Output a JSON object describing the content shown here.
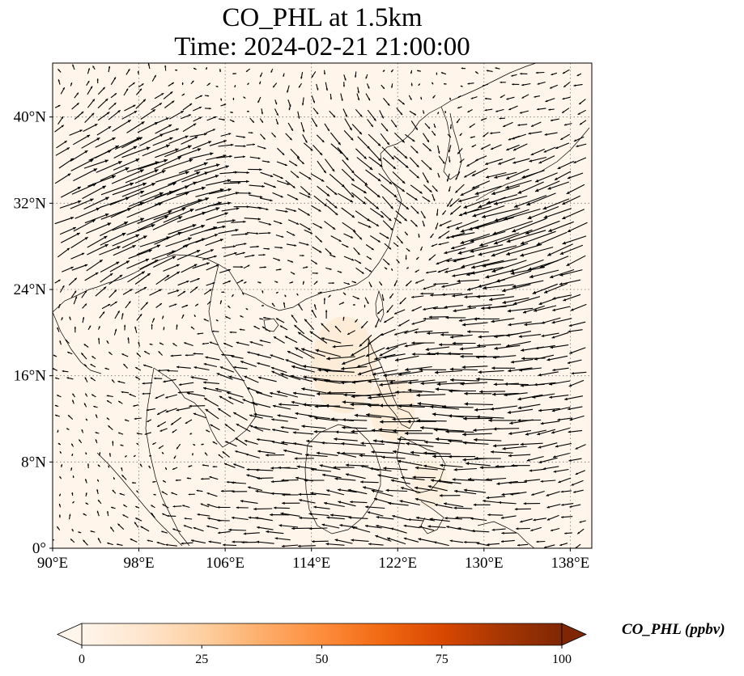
{
  "title": {
    "line1": "CO_PHL at 1.5km",
    "line2": "Time: 2024-02-21 21:00:00"
  },
  "map": {
    "lon_range": [
      90,
      140
    ],
    "lat_range": [
      0,
      45
    ],
    "lon_ticks": [
      "90°E",
      "98°E",
      "106°E",
      "114°E",
      "122°E",
      "130°E",
      "138°E"
    ],
    "lat_ticks": [
      "0°",
      "8°N",
      "16°N",
      "24°N",
      "32°N",
      "40°N"
    ],
    "gridlines": true,
    "background_color": "#fff5eb",
    "plume_color": "#fdebd3",
    "arrow_color": "#000000",
    "coastline_color": "#000000"
  },
  "colorbar": {
    "label": "CO_PHL (ppbv)",
    "min": 0,
    "max": 100,
    "ticks": [
      "0",
      "25",
      "50",
      "75",
      "100"
    ],
    "extend": "both",
    "colors": [
      "#fff5eb",
      "#fee6ce",
      "#fdd0a2",
      "#fdae6b",
      "#fd8d3c",
      "#f16913",
      "#d94801",
      "#a63603",
      "#7f2704"
    ]
  }
}
